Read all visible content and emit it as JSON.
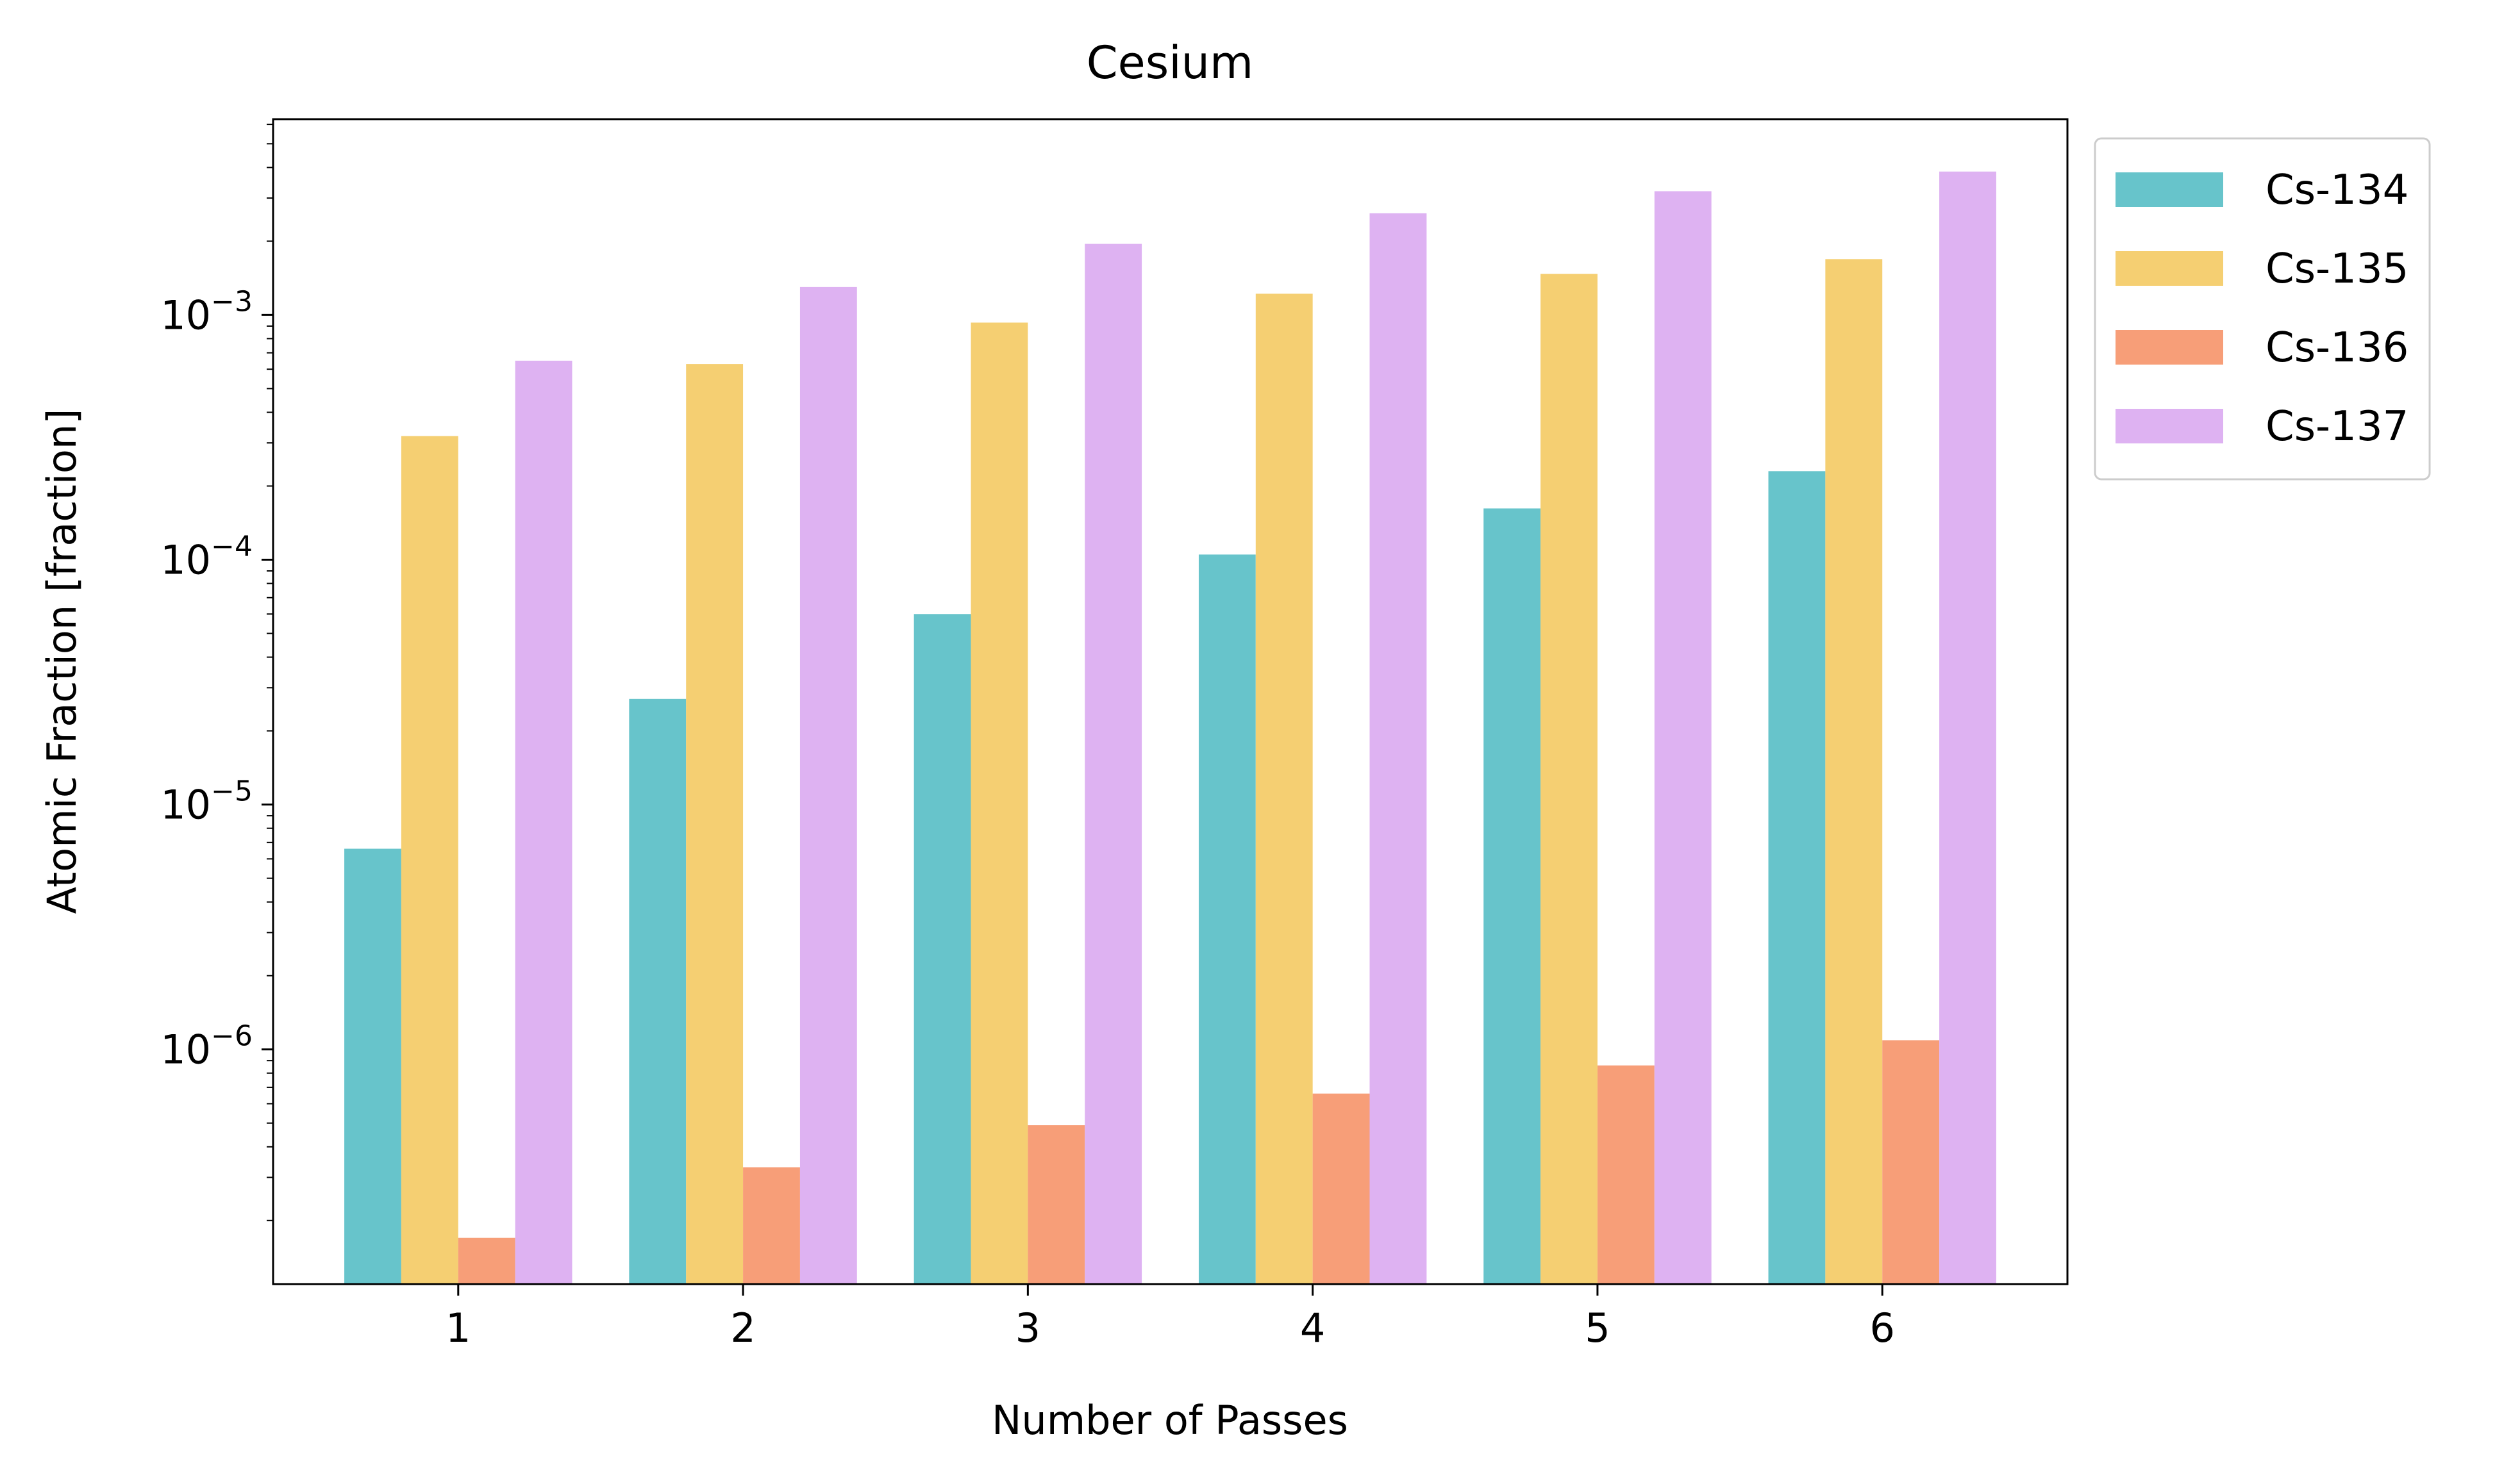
{
  "chart_data": {
    "type": "bar",
    "title": "Cesium",
    "xlabel": "Number of Passes",
    "ylabel": "Atomic Fraction [fraction]",
    "yscale": "log",
    "ylim": [
      1.1e-07,
      0.0063
    ],
    "y_ticks": [
      {
        "value": 1e-06,
        "base": "10",
        "exp": "−6"
      },
      {
        "value": 1e-05,
        "base": "10",
        "exp": "−5"
      },
      {
        "value": 0.0001,
        "base": "10",
        "exp": "−4"
      },
      {
        "value": 0.001,
        "base": "10",
        "exp": "−3"
      }
    ],
    "categories": [
      "1",
      "2",
      "3",
      "4",
      "5",
      "6"
    ],
    "legend_position": "outside-top-right",
    "grid": false,
    "series": [
      {
        "name": "Cs-134",
        "color": "#67c4cb",
        "values": [
          6.6e-06,
          2.7e-05,
          6e-05,
          0.000105,
          0.000162,
          0.00023
        ]
      },
      {
        "name": "Cs-135",
        "color": "#f5cf72",
        "values": [
          0.00032,
          0.00063,
          0.00093,
          0.00122,
          0.00147,
          0.00169
        ]
      },
      {
        "name": "Cs-136",
        "color": "#f79e78",
        "values": [
          1.7e-07,
          3.3e-07,
          4.9e-07,
          6.6e-07,
          8.6e-07,
          1.09e-06
        ]
      },
      {
        "name": "Cs-137",
        "color": "#deb2f2",
        "values": [
          0.00065,
          0.0013,
          0.00195,
          0.0026,
          0.0032,
          0.00385
        ]
      }
    ]
  }
}
